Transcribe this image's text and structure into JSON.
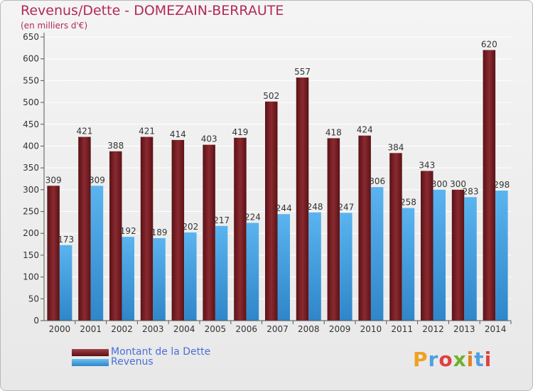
{
  "header": {
    "title": "Revenus/Dette - DOMEZAIN-BERRAUTE",
    "subtitle": "(en milliers d'€)"
  },
  "legend": {
    "items": [
      {
        "label": "Montant de la Dette",
        "color": "#7a1c22"
      },
      {
        "label": "Revenus",
        "color": "#4ea8e6"
      }
    ]
  },
  "logo": {
    "text": "Proxiti"
  },
  "chart_data": {
    "type": "bar",
    "categories": [
      "2000",
      "2001",
      "2002",
      "2003",
      "2004",
      "2005",
      "2006",
      "2007",
      "2008",
      "2009",
      "2010",
      "2011",
      "2012",
      "2013",
      "2014"
    ],
    "series": [
      {
        "name": "Montant de la Dette",
        "color": "#7a1c22",
        "values": [
          309,
          421,
          388,
          421,
          414,
          403,
          419,
          502,
          557,
          418,
          424,
          384,
          343,
          300,
          620
        ]
      },
      {
        "name": "Revenus",
        "color": "#4ea8e6",
        "values": [
          173,
          309,
          192,
          189,
          202,
          217,
          224,
          244,
          248,
          247,
          306,
          258,
          300,
          283,
          298
        ]
      }
    ],
    "ylim": [
      0,
      650
    ],
    "yticks": [
      0,
      50,
      100,
      150,
      200,
      250,
      300,
      350,
      400,
      450,
      500,
      550,
      600,
      650
    ],
    "grid": true,
    "legend_position": "bottom-left"
  }
}
